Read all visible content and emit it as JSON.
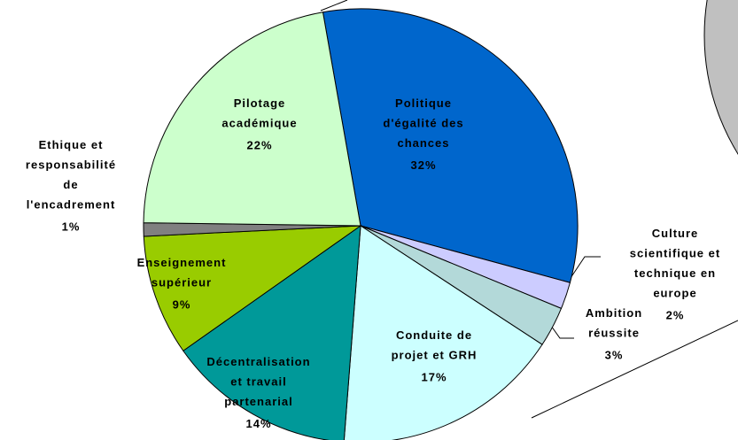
{
  "chart_data": {
    "type": "pie",
    "categories": [
      "Politique\nd'égalité des\nchances",
      "Culture\nscientifique et\ntechnique en\neurope",
      "Ambition\nréussite",
      "Conduite de\nprojet et GRH",
      "Décentralisation\net travail\npartenarial",
      "Enseignement\nsupérieur",
      "Ethique et\nresponsabilité\nde\nl'encadrement",
      "Pilotage\nacadémique"
    ],
    "values": [
      32,
      2,
      3,
      17,
      14,
      9,
      1,
      22
    ],
    "value_labels": [
      "32%",
      "2%",
      "3%",
      "17%",
      "14%",
      "9%",
      "1%",
      "22%"
    ],
    "colors": [
      "#0066cc",
      "#ccccff",
      "#b3d9d9",
      "#ccffff",
      "#009999",
      "#99cc00",
      "#808080",
      "#ccffcc"
    ]
  }
}
